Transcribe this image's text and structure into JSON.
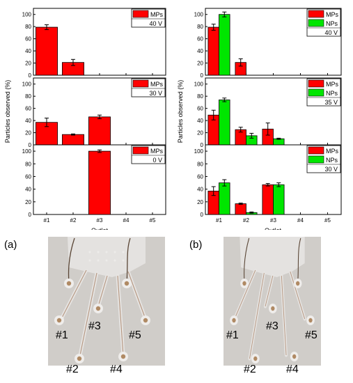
{
  "figure": {
    "panel_labels": [
      "(a)",
      "(b)"
    ]
  },
  "colors": {
    "mps": "#ff0000",
    "nps": "#00e600",
    "error_bar": "#000000",
    "photo_bg": "#c8c4c0",
    "chip_light": "#e0dedd",
    "channel": "#b79a85"
  },
  "chart_data": [
    {
      "type": "bar",
      "panel": "a",
      "xlabel": "Outlet",
      "ylabel": "Particles observed (%)",
      "categories": [
        "#1",
        "#2",
        "#3",
        "#4",
        "#5"
      ],
      "subplots": [
        {
          "condition": "40 V",
          "ylim": [
            0,
            110
          ],
          "yticks": [
            0,
            20,
            40,
            60,
            80,
            100
          ],
          "series": [
            {
              "name": "MPs",
              "color": "#ff0000",
              "values": [
                79,
                21,
                0,
                0,
                0
              ],
              "errors": [
                4,
                5,
                0,
                0,
                0
              ]
            }
          ]
        },
        {
          "condition": "30 V",
          "ylim": [
            0,
            110
          ],
          "yticks": [
            0,
            20,
            40,
            60,
            80,
            100
          ],
          "series": [
            {
              "name": "MPs",
              "color": "#ff0000",
              "values": [
                37,
                17,
                46,
                0,
                0
              ],
              "errors": [
                7,
                1,
                3,
                0,
                0
              ]
            }
          ]
        },
        {
          "condition": "0 V",
          "ylim": [
            0,
            110
          ],
          "yticks": [
            0,
            20,
            40,
            60,
            80,
            100
          ],
          "series": [
            {
              "name": "MPs",
              "color": "#ff0000",
              "values": [
                0,
                0,
                100,
                0,
                0
              ],
              "errors": [
                0,
                0,
                2,
                0,
                0
              ]
            }
          ]
        }
      ]
    },
    {
      "type": "bar",
      "panel": "b",
      "xlabel": "Outlet",
      "ylabel": "Particles observed (%)",
      "categories": [
        "#1",
        "#2",
        "#3",
        "#4",
        "#5"
      ],
      "subplots": [
        {
          "condition": "40 V",
          "ylim": [
            0,
            110
          ],
          "yticks": [
            0,
            20,
            40,
            60,
            80,
            100
          ],
          "series": [
            {
              "name": "MPs",
              "color": "#ff0000",
              "values": [
                79,
                21,
                0,
                0,
                0
              ],
              "errors": [
                5,
                6,
                0,
                0,
                0
              ]
            },
            {
              "name": "NPs",
              "color": "#00e600",
              "values": [
                100,
                0,
                0,
                0,
                0
              ],
              "errors": [
                4,
                0,
                0,
                0,
                0
              ]
            }
          ]
        },
        {
          "condition": "35 V",
          "ylim": [
            0,
            110
          ],
          "yticks": [
            0,
            20,
            40,
            60,
            80,
            100
          ],
          "series": [
            {
              "name": "MPs",
              "color": "#ff0000",
              "values": [
                49,
                25,
                26,
                0,
                0
              ],
              "errors": [
                8,
                4,
                10,
                0,
                0
              ]
            },
            {
              "name": "NPs",
              "color": "#00e600",
              "values": [
                74,
                15,
                10,
                0,
                0
              ],
              "errors": [
                3,
                4,
                1,
                0,
                0
              ]
            }
          ]
        },
        {
          "condition": "30 V",
          "ylim": [
            0,
            110
          ],
          "yticks": [
            0,
            20,
            40,
            60,
            80,
            100
          ],
          "series": [
            {
              "name": "MPs",
              "color": "#ff0000",
              "values": [
                37,
                17,
                47,
                0,
                0
              ],
              "errors": [
                7,
                1,
                2,
                0,
                0
              ]
            },
            {
              "name": "NPs",
              "color": "#00e600",
              "values": [
                50,
                3,
                47,
                0,
                0
              ],
              "errors": [
                5,
                1,
                3,
                0,
                0
              ]
            }
          ]
        }
      ]
    }
  ],
  "photos": [
    {
      "outlets": [
        "#1",
        "#2",
        "#3",
        "#4",
        "#5"
      ]
    },
    {
      "outlets": [
        "#1",
        "#2",
        "#3",
        "#4",
        "#5"
      ]
    }
  ]
}
